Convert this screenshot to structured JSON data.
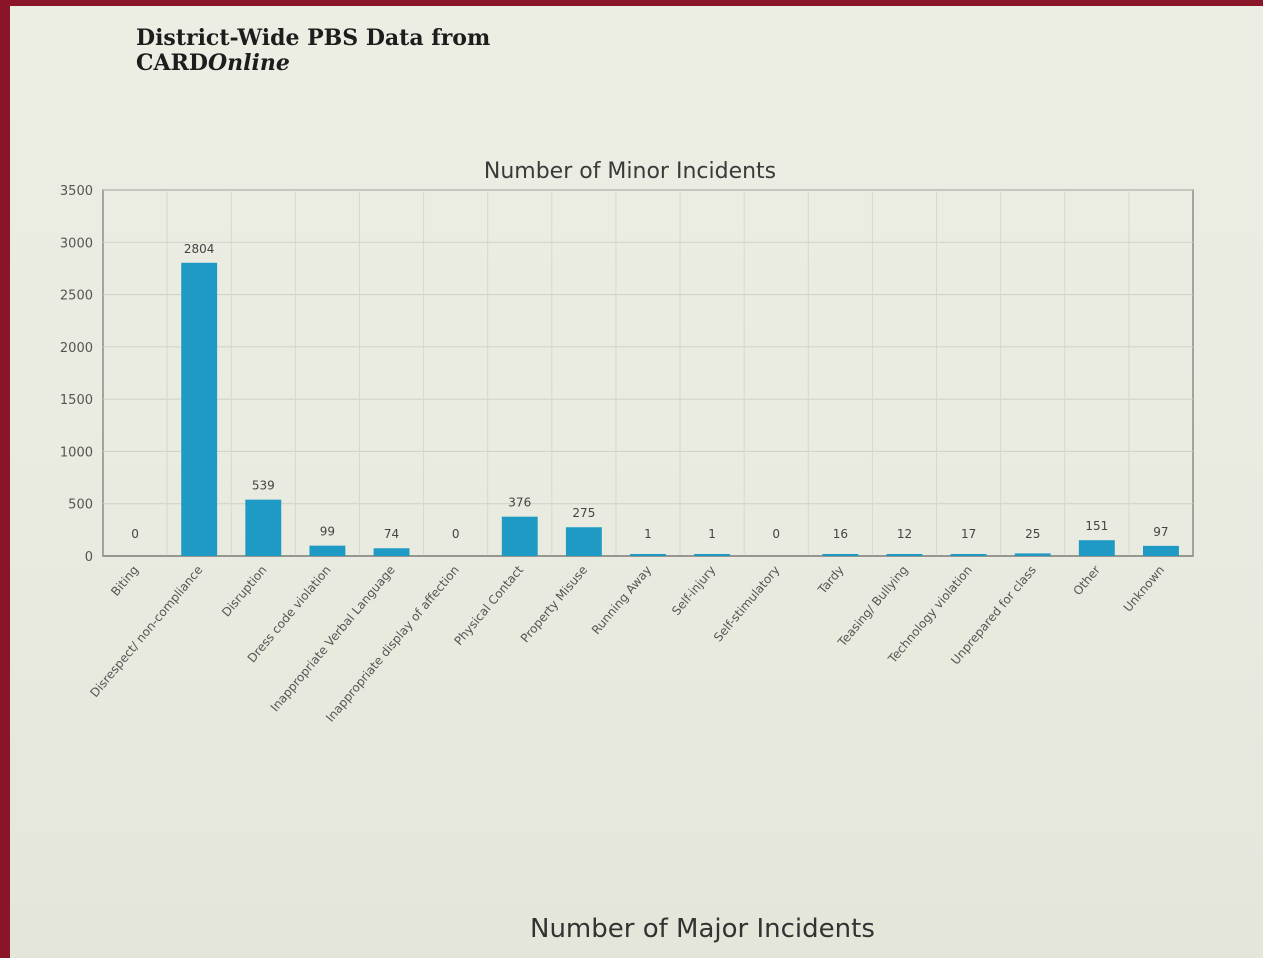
{
  "document": {
    "title_line1": "District-Wide PBS Data from",
    "title_line2_a": "CARD",
    "title_line2_b": "Online"
  },
  "chart_data": {
    "type": "bar",
    "title": "Number of Minor Incidents",
    "xlabel": "",
    "ylabel": "",
    "ylim": [
      0,
      3500
    ],
    "yticks": [
      "0",
      "500",
      "1000",
      "1500",
      "2000",
      "2500",
      "3000",
      "3500"
    ],
    "grid": true,
    "bar_color": "#1f9ac4",
    "categories": [
      "Biting",
      "Disrespect/ non-compliance",
      "Disruption",
      "Dress code violation",
      "Inappropriate Verbal Language",
      "Inappropriate display of affection",
      "Physical Contact",
      "Property Misuse",
      "Running Away",
      "Self-injury",
      "Self-stimulatory",
      "Tardy",
      "Teasing/ Bullying",
      "Technology violation",
      "Unprepared for class",
      "Other",
      "Unknown"
    ],
    "values": [
      0,
      2804,
      539,
      99,
      74,
      0,
      376,
      275,
      1,
      1,
      0,
      16,
      12,
      17,
      25,
      151,
      97
    ]
  },
  "next_chart": {
    "title": "Number of Major Incidents"
  }
}
